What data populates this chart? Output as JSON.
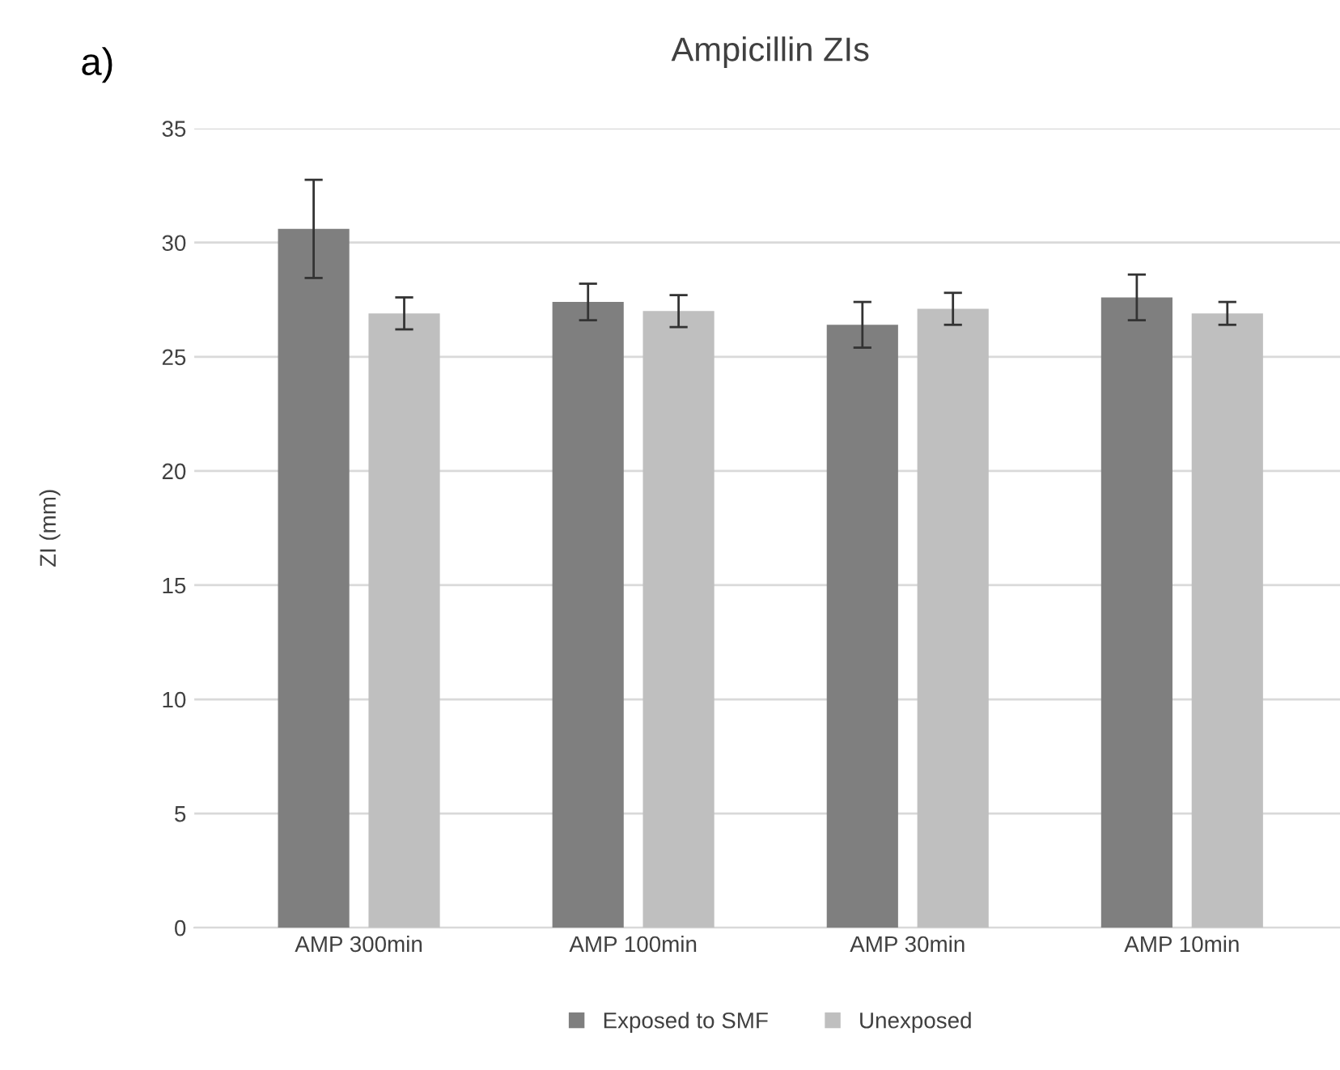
{
  "chart_data": {
    "type": "bar",
    "title": "Ampicillin ZIs",
    "ylabel": "ZI (mm)",
    "annotations": [
      "a)"
    ],
    "categories": [
      "AMP 300min",
      "AMP 100min",
      "AMP 30min",
      "AMP 10min"
    ],
    "series": [
      {
        "name": "Exposed to SMF",
        "color": "#7f7f7f",
        "values": [
          30.6,
          27.4,
          26.4,
          27.6
        ],
        "errors": [
          2.15,
          0.8,
          1.0,
          1.0
        ]
      },
      {
        "name": "Unexposed",
        "color": "#bfbfbf",
        "values": [
          26.9,
          27.0,
          27.1,
          26.9
        ],
        "errors": [
          0.7,
          0.7,
          0.7,
          0.5
        ]
      }
    ],
    "ylim": [
      0,
      35
    ],
    "yticks": [
      0,
      5,
      10,
      15,
      20,
      25,
      30,
      35
    ],
    "grid": "y",
    "legend": "bottom"
  }
}
